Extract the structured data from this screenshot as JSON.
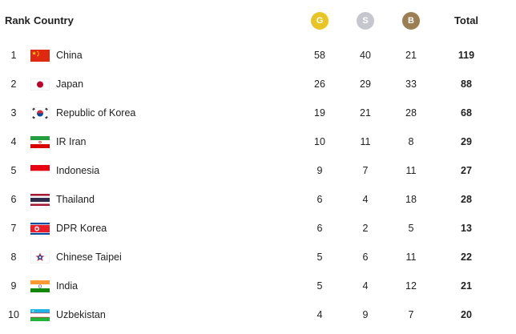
{
  "header": {
    "rank": "Rank",
    "country": "Country",
    "gold": "G",
    "silver": "S",
    "bronze": "B",
    "total": "Total"
  },
  "colors": {
    "gold": "#e8c424",
    "silver": "#c6c6cf",
    "bronze": "#9b7f52"
  },
  "rows": [
    {
      "rank": "1",
      "flag": "china-flag-icon",
      "country": "China",
      "gold": "58",
      "silver": "40",
      "bronze": "21",
      "total": "119"
    },
    {
      "rank": "2",
      "flag": "japan-flag-icon",
      "country": "Japan",
      "gold": "26",
      "silver": "29",
      "bronze": "33",
      "total": "88"
    },
    {
      "rank": "3",
      "flag": "korea-flag-icon",
      "country": "Republic of Korea",
      "gold": "19",
      "silver": "21",
      "bronze": "28",
      "total": "68"
    },
    {
      "rank": "4",
      "flag": "iran-flag-icon",
      "country": "IR Iran",
      "gold": "10",
      "silver": "11",
      "bronze": "8",
      "total": "29"
    },
    {
      "rank": "5",
      "flag": "indonesia-flag-icon",
      "country": "Indonesia",
      "gold": "9",
      "silver": "7",
      "bronze": "11",
      "total": "27"
    },
    {
      "rank": "6",
      "flag": "thailand-flag-icon",
      "country": "Thailand",
      "gold": "6",
      "silver": "4",
      "bronze": "18",
      "total": "28"
    },
    {
      "rank": "7",
      "flag": "dpr-korea-flag-icon",
      "country": "DPR Korea",
      "gold": "6",
      "silver": "2",
      "bronze": "5",
      "total": "13"
    },
    {
      "rank": "8",
      "flag": "chinese-taipei-flag-icon",
      "country": "Chinese Taipei",
      "gold": "5",
      "silver": "6",
      "bronze": "11",
      "total": "22"
    },
    {
      "rank": "9",
      "flag": "india-flag-icon",
      "country": "India",
      "gold": "5",
      "silver": "4",
      "bronze": "12",
      "total": "21"
    },
    {
      "rank": "10",
      "flag": "uzbekistan-flag-icon",
      "country": "Uzbekistan",
      "gold": "4",
      "silver": "9",
      "bronze": "7",
      "total": "20"
    }
  ]
}
